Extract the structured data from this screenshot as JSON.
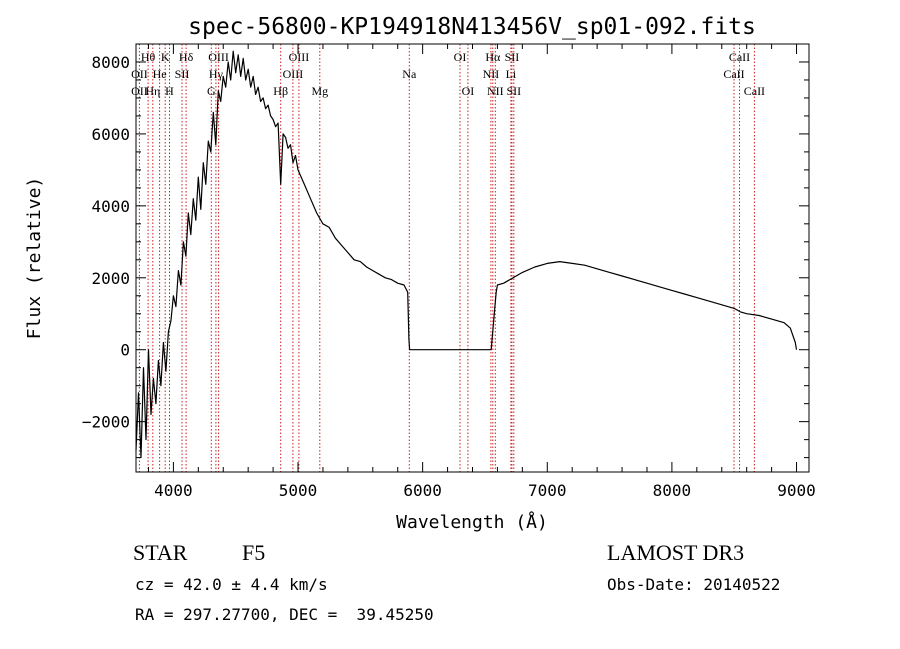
{
  "chart_data": {
    "type": "line",
    "title": "spec-56800-KP194918N413456V_sp01-092.fits",
    "xlabel": "Wavelength (Å)",
    "ylabel": "Flux (relative)",
    "xlim": [
      3700,
      9100
    ],
    "ylim": [
      -3400,
      8500
    ],
    "xticks": [
      4000,
      5000,
      6000,
      7000,
      8000,
      9000
    ],
    "yticks": [
      -2000,
      0,
      2000,
      4000,
      6000,
      8000
    ],
    "xtick_labels": [
      "4000",
      "5000",
      "6000",
      "7000",
      "8000",
      "9000"
    ],
    "ytick_labels": [
      "−2000",
      "0",
      "2000",
      "4000",
      "6000",
      "8000"
    ],
    "series": [
      {
        "name": "flux",
        "x": [
          3700,
          3720,
          3740,
          3760,
          3780,
          3800,
          3820,
          3840,
          3860,
          3880,
          3900,
          3920,
          3940,
          3960,
          3980,
          4000,
          4020,
          4040,
          4060,
          4080,
          4100,
          4120,
          4140,
          4160,
          4180,
          4200,
          4220,
          4240,
          4260,
          4280,
          4300,
          4320,
          4340,
          4360,
          4380,
          4400,
          4420,
          4440,
          4460,
          4480,
          4500,
          4520,
          4540,
          4560,
          4580,
          4600,
          4620,
          4640,
          4660,
          4680,
          4700,
          4720,
          4740,
          4760,
          4780,
          4800,
          4820,
          4840,
          4861,
          4880,
          4900,
          4920,
          4940,
          4960,
          4980,
          5000,
          5050,
          5100,
          5150,
          5200,
          5250,
          5300,
          5350,
          5400,
          5450,
          5500,
          5550,
          5600,
          5650,
          5700,
          5750,
          5800,
          5850,
          5880,
          5890,
          5895,
          5900,
          6000,
          6200,
          6400,
          6550,
          6580,
          6590,
          6600,
          6650,
          6700,
          6800,
          6900,
          7000,
          7100,
          7200,
          7300,
          7400,
          7500,
          7600,
          7700,
          7800,
          7900,
          8000,
          8100,
          8200,
          8300,
          8400,
          8500,
          8550,
          8600,
          8700,
          8800,
          8900,
          8950,
          8990,
          9000
        ],
        "values": [
          -2800,
          -1200,
          -3000,
          -500,
          -2500,
          0,
          -1800,
          -800,
          -1500,
          -300,
          -1000,
          200,
          -600,
          500,
          800,
          1500,
          1200,
          2200,
          1800,
          3000,
          2600,
          3800,
          3200,
          4200,
          3600,
          4800,
          3900,
          5200,
          4600,
          5800,
          5500,
          6600,
          5700,
          7200,
          6900,
          7600,
          7300,
          8000,
          7500,
          8300,
          7700,
          8200,
          7600,
          8100,
          7500,
          7800,
          7300,
          7600,
          7100,
          7300,
          6900,
          7000,
          6700,
          6800,
          6500,
          6400,
          6200,
          6300,
          4600,
          6000,
          5900,
          5600,
          5700,
          5200,
          5400,
          5000,
          4600,
          4200,
          3800,
          3500,
          3400,
          3100,
          2900,
          2700,
          2500,
          2450,
          2300,
          2200,
          2100,
          2000,
          1950,
          1850,
          1800,
          1600,
          300,
          0,
          0,
          0,
          0,
          0,
          0,
          1200,
          1600,
          1800,
          1850,
          1950,
          2150,
          2300,
          2400,
          2450,
          2400,
          2350,
          2250,
          2150,
          2050,
          1950,
          1850,
          1750,
          1650,
          1550,
          1450,
          1350,
          1250,
          1150,
          1050,
          1000,
          950,
          850,
          750,
          600,
          200,
          0
        ]
      }
    ],
    "annotations": [
      {
        "label": "Hθ",
        "x": 3797,
        "row": 1
      },
      {
        "label": "OII",
        "x": 3727,
        "row": 2
      },
      {
        "label": "OII",
        "x": 3727,
        "row": 3
      },
      {
        "label": "K",
        "x": 3934,
        "row": 1
      },
      {
        "label": "He",
        "x": 3889,
        "row": 2
      },
      {
        "label": "Hη",
        "x": 3835,
        "row": 3
      },
      {
        "label": "Hδ",
        "x": 4102,
        "row": 1
      },
      {
        "label": "SII",
        "x": 4069,
        "row": 2
      },
      {
        "label": "H",
        "x": 3969,
        "row": 3
      },
      {
        "label": "OIII",
        "x": 4363,
        "row": 1
      },
      {
        "label": "Hγ",
        "x": 4341,
        "row": 2
      },
      {
        "label": "G",
        "x": 4304,
        "row": 3
      },
      {
        "label": "Hβ",
        "x": 4861,
        "row": 3
      },
      {
        "label": "OIII",
        "x": 5007,
        "row": 1
      },
      {
        "label": "OIII",
        "x": 4959,
        "row": 2
      },
      {
        "label": "Mg",
        "x": 5175,
        "row": 3
      },
      {
        "label": "Na",
        "x": 5893,
        "row": 2
      },
      {
        "label": "OI",
        "x": 6300,
        "row": 1
      },
      {
        "label": "OI",
        "x": 6363,
        "row": 3
      },
      {
        "label": "Hα",
        "x": 6563,
        "row": 1
      },
      {
        "label": "SII",
        "x": 6716,
        "row": 1
      },
      {
        "label": "NII",
        "x": 6548,
        "row": 2
      },
      {
        "label": "Li",
        "x": 6708,
        "row": 2
      },
      {
        "label": "NII",
        "x": 6583,
        "row": 3
      },
      {
        "label": "SII",
        "x": 6731,
        "row": 3
      },
      {
        "label": "CaII",
        "x": 8542,
        "row": 1
      },
      {
        "label": "CaII",
        "x": 8498,
        "row": 2
      },
      {
        "label": "CaII",
        "x": 8662,
        "row": 3
      }
    ],
    "guide_lines": [
      3727,
      3797,
      3835,
      3889,
      3934,
      3969,
      4069,
      4102,
      4304,
      4341,
      4363,
      4861,
      4959,
      5007,
      5175,
      5893,
      6300,
      6363,
      6548,
      6563,
      6583,
      6708,
      6716,
      6731,
      8498,
      8542,
      8662
    ]
  },
  "info": {
    "class": "STAR",
    "subclass": "F5",
    "survey": "LAMOST DR3",
    "cz": "cz = 42.0 ± 4.4 km/s",
    "obs_date": "Obs-Date: 20140522",
    "coords": "RA = 297.27700, DEC =  39.45250"
  },
  "colors": {
    "line": "#000000",
    "guide": "#cc2020",
    "axis": "#000000"
  }
}
